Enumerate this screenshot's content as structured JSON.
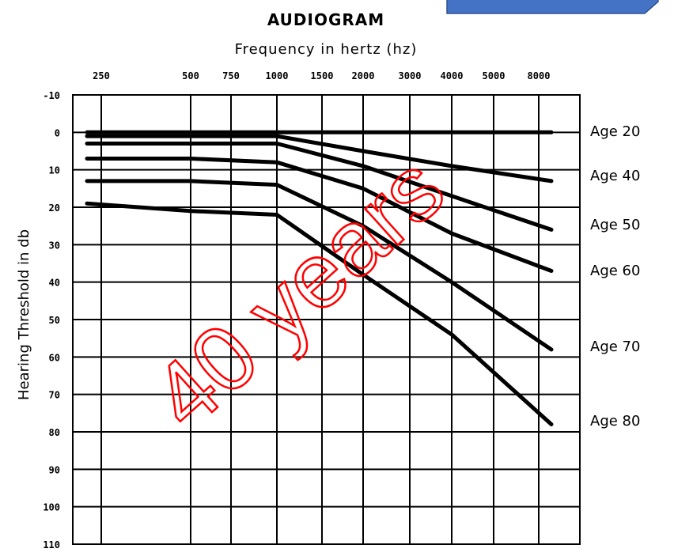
{
  "chart_data": {
    "type": "line",
    "title": "AUDIOGRAM",
    "xlabel": "Frequency in hertz (hz)",
    "ylabel": "Hearing Threshold in db",
    "x_ticks": [
      "250",
      "500",
      "750",
      "1000",
      "1500",
      "2000",
      "3000",
      "4000",
      "5000",
      "8000"
    ],
    "y_ticks": [
      "-10",
      "0",
      "10",
      "20",
      "30",
      "40",
      "50",
      "60",
      "70",
      "80",
      "90",
      "100",
      "110"
    ],
    "ylim": [
      -10,
      110
    ],
    "y_inverted": true,
    "x_scale": "categorical-log",
    "overlay_text": "40 years",
    "overlay_color": "#ff0000",
    "series": [
      {
        "name": "Age 20",
        "points": [
          [
            250,
            0
          ],
          [
            500,
            0
          ],
          [
            1000,
            0
          ],
          [
            2000,
            0
          ],
          [
            4000,
            0
          ],
          [
            8000,
            0
          ]
        ]
      },
      {
        "name": "Age 40",
        "points": [
          [
            250,
            1
          ],
          [
            500,
            1
          ],
          [
            1000,
            1
          ],
          [
            2000,
            5
          ],
          [
            4000,
            9
          ],
          [
            8000,
            13
          ]
        ]
      },
      {
        "name": "Age 50",
        "points": [
          [
            250,
            3
          ],
          [
            500,
            3
          ],
          [
            1000,
            3
          ],
          [
            2000,
            9
          ],
          [
            4000,
            17
          ],
          [
            8000,
            26
          ]
        ]
      },
      {
        "name": "Age 60",
        "points": [
          [
            250,
            7
          ],
          [
            500,
            7
          ],
          [
            1000,
            8
          ],
          [
            2000,
            15
          ],
          [
            4000,
            27
          ],
          [
            8000,
            37
          ]
        ]
      },
      {
        "name": "Age 70",
        "points": [
          [
            250,
            13
          ],
          [
            500,
            13
          ],
          [
            1000,
            14
          ],
          [
            2000,
            25
          ],
          [
            4000,
            40
          ],
          [
            8000,
            58
          ]
        ]
      },
      {
        "name": "Age 80",
        "points": [
          [
            250,
            19
          ],
          [
            500,
            21
          ],
          [
            1000,
            22
          ],
          [
            2000,
            38
          ],
          [
            4000,
            54
          ],
          [
            8000,
            78
          ]
        ]
      }
    ]
  }
}
